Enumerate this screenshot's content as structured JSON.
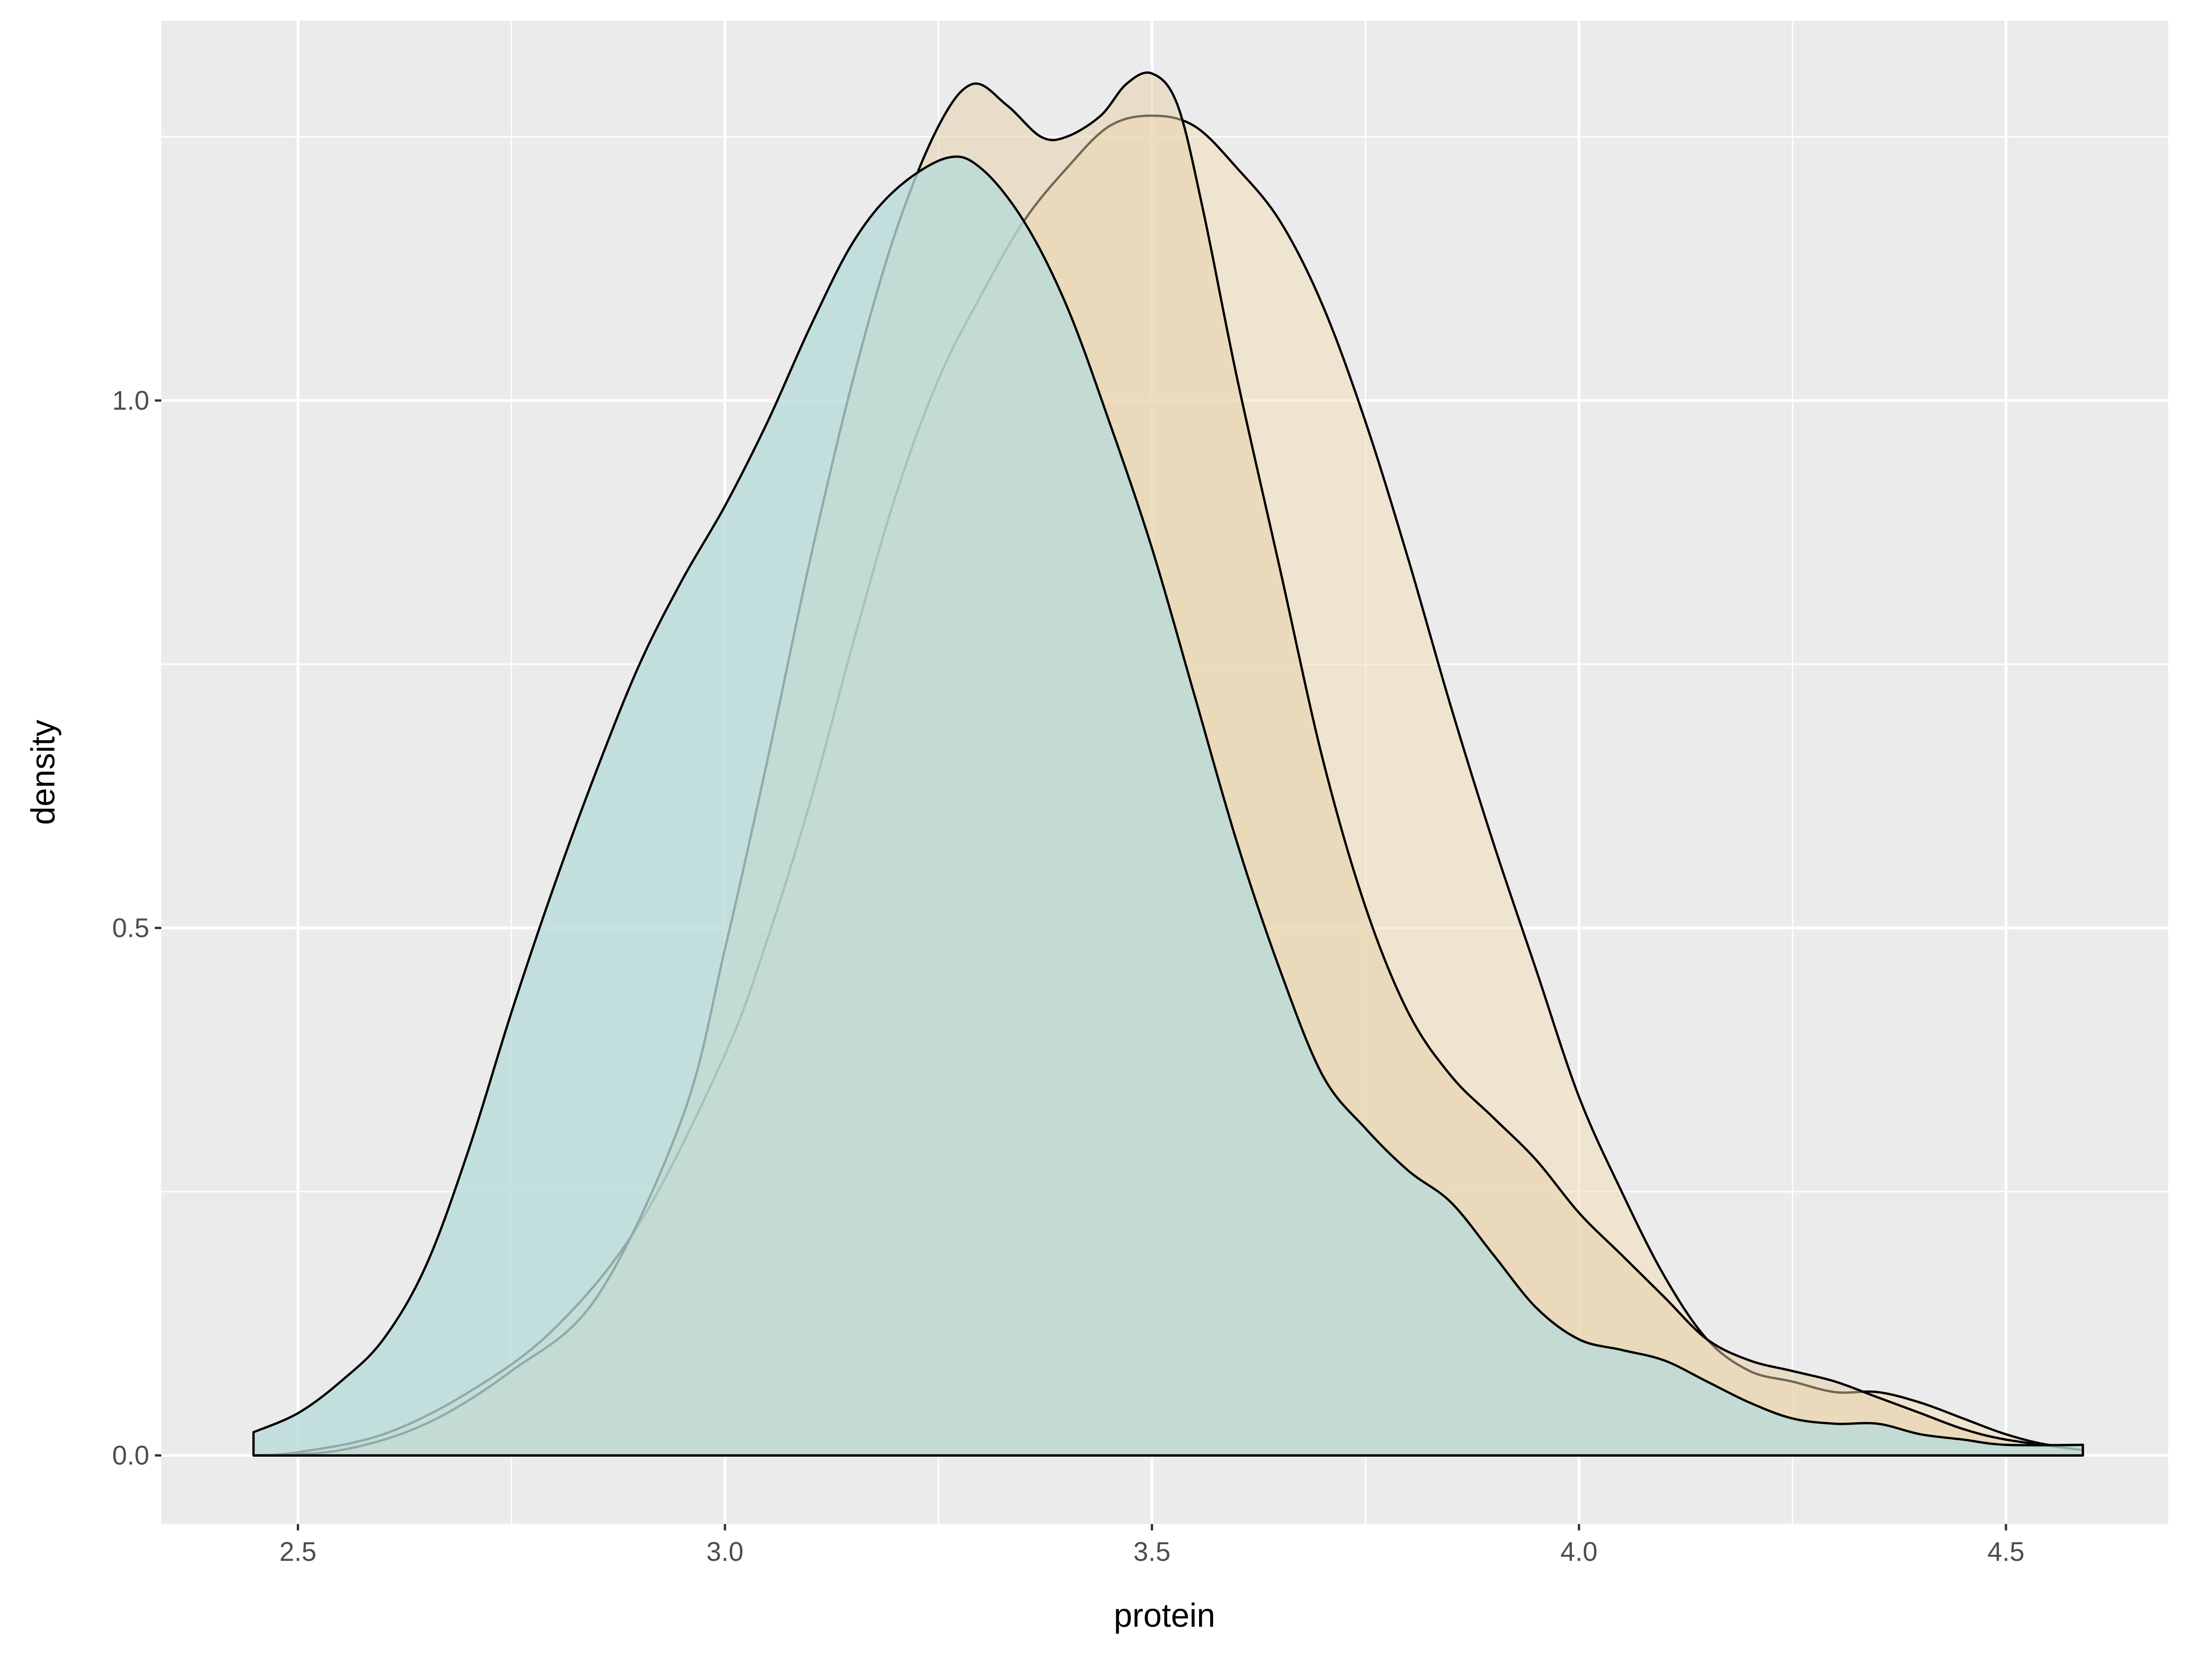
{
  "chart_data": {
    "type": "area",
    "title": "",
    "xlabel": "protein",
    "ylabel": "density",
    "xlim": [
      2.34,
      4.69
    ],
    "ylim": [
      -0.065,
      1.36
    ],
    "x_ticks": [
      2.5,
      3.0,
      3.5,
      4.0,
      4.5
    ],
    "x_tick_labels": [
      "2.5",
      "3.0",
      "3.5",
      "4.0",
      "4.5"
    ],
    "y_ticks": [
      0.0,
      0.5,
      1.0
    ],
    "y_tick_labels": [
      "0.0",
      "0.5",
      "1.0"
    ],
    "grid": true,
    "legend": "none",
    "series": [
      {
        "fill": "#f0deb8",
        "fill_opacity": 0.55,
        "stroke": "#000000",
        "x": [
          2.448,
          2.5,
          2.6,
          2.7,
          2.8,
          2.9,
          3.0,
          3.05,
          3.1,
          3.15,
          3.2,
          3.25,
          3.3,
          3.35,
          3.4,
          3.45,
          3.5,
          3.55,
          3.6,
          3.65,
          3.7,
          3.75,
          3.8,
          3.85,
          3.9,
          3.95,
          4.0,
          4.05,
          4.1,
          4.15,
          4.2,
          4.25,
          4.3,
          4.35,
          4.4,
          4.45,
          4.5,
          4.55,
          4.59
        ],
        "y": [
          0.0,
          0.003,
          0.02,
          0.06,
          0.12,
          0.22,
          0.38,
          0.49,
          0.62,
          0.77,
          0.91,
          1.02,
          1.1,
          1.17,
          1.22,
          1.26,
          1.27,
          1.26,
          1.22,
          1.17,
          1.09,
          0.98,
          0.85,
          0.71,
          0.58,
          0.46,
          0.34,
          0.25,
          0.17,
          0.11,
          0.08,
          0.07,
          0.06,
          0.06,
          0.05,
          0.035,
          0.02,
          0.01,
          0.01
        ]
      },
      {
        "fill": "#e5cfa8",
        "fill_opacity": 0.5,
        "stroke": "#000000",
        "x": [
          2.448,
          2.55,
          2.65,
          2.75,
          2.85,
          2.95,
          3.0,
          3.05,
          3.1,
          3.15,
          3.2,
          3.25,
          3.29,
          3.33,
          3.37,
          3.4,
          3.44,
          3.47,
          3.5,
          3.53,
          3.56,
          3.6,
          3.65,
          3.7,
          3.75,
          3.8,
          3.85,
          3.9,
          3.95,
          4.0,
          4.05,
          4.1,
          4.15,
          4.2,
          4.25,
          4.3,
          4.35,
          4.4,
          4.45,
          4.5,
          4.59
        ],
        "y": [
          0.0,
          0.005,
          0.03,
          0.08,
          0.15,
          0.32,
          0.48,
          0.66,
          0.85,
          1.02,
          1.16,
          1.26,
          1.3,
          1.28,
          1.25,
          1.25,
          1.27,
          1.3,
          1.31,
          1.28,
          1.18,
          1.02,
          0.84,
          0.66,
          0.52,
          0.42,
          0.36,
          0.32,
          0.28,
          0.23,
          0.19,
          0.15,
          0.11,
          0.09,
          0.08,
          0.07,
          0.055,
          0.04,
          0.025,
          0.015,
          0.005
        ]
      },
      {
        "fill": "#b7dbd9",
        "fill_opacity": 0.78,
        "stroke": "#000000",
        "x": [
          2.448,
          2.5,
          2.55,
          2.6,
          2.65,
          2.7,
          2.75,
          2.8,
          2.85,
          2.9,
          2.95,
          3.0,
          3.05,
          3.1,
          3.15,
          3.2,
          3.26,
          3.3,
          3.35,
          3.4,
          3.45,
          3.5,
          3.55,
          3.6,
          3.65,
          3.7,
          3.75,
          3.8,
          3.85,
          3.9,
          3.95,
          4.0,
          4.05,
          4.1,
          4.15,
          4.2,
          4.25,
          4.3,
          4.35,
          4.4,
          4.45,
          4.5,
          4.59
        ],
        "y": [
          0.022,
          0.04,
          0.07,
          0.11,
          0.18,
          0.29,
          0.42,
          0.54,
          0.65,
          0.75,
          0.83,
          0.9,
          0.98,
          1.07,
          1.15,
          1.2,
          1.23,
          1.22,
          1.17,
          1.09,
          0.98,
          0.86,
          0.72,
          0.58,
          0.46,
          0.36,
          0.31,
          0.27,
          0.24,
          0.19,
          0.14,
          0.11,
          0.1,
          0.09,
          0.07,
          0.05,
          0.035,
          0.03,
          0.03,
          0.02,
          0.015,
          0.01,
          0.01
        ]
      }
    ]
  }
}
